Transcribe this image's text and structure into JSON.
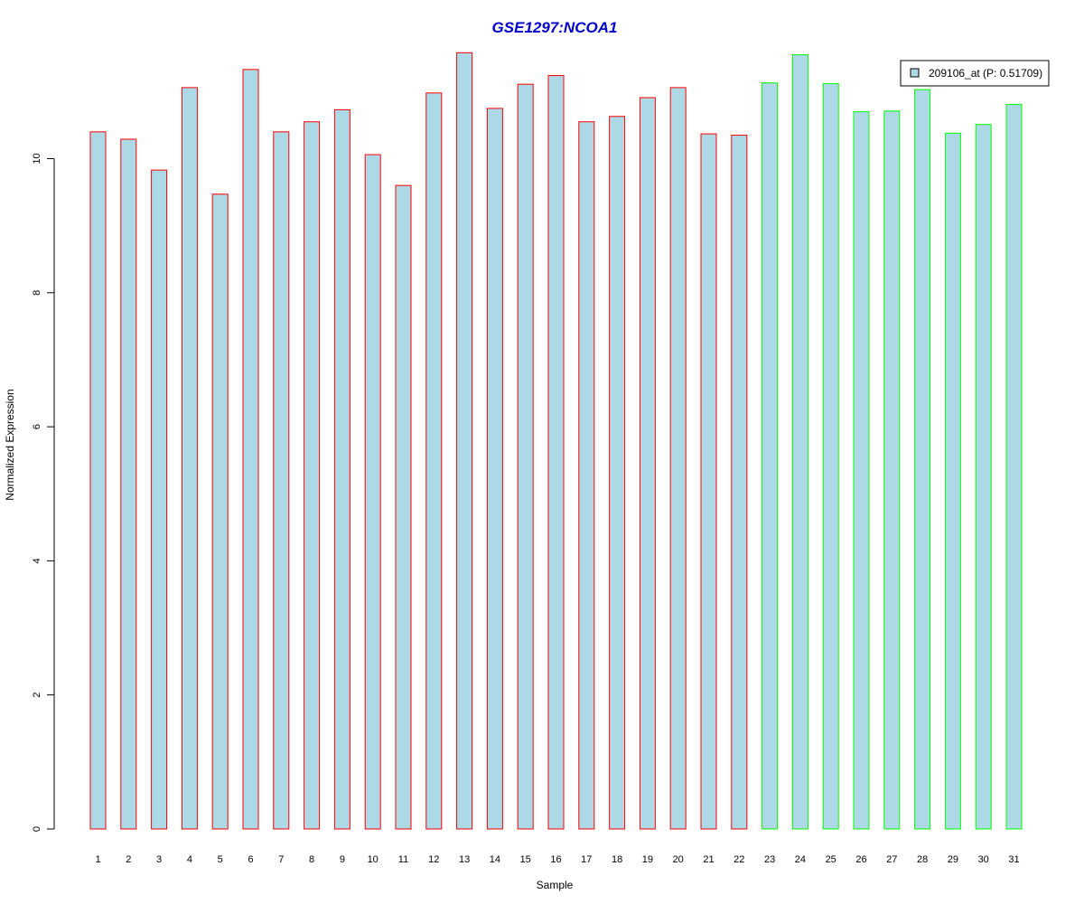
{
  "chart_data": {
    "type": "bar",
    "title": "GSE1297:NCOA1",
    "xlabel": "Sample",
    "ylabel": "Normalized Expression",
    "ylim": [
      0,
      11.6
    ],
    "yticks": [
      0,
      2,
      4,
      6,
      8,
      10
    ],
    "categories": [
      "1",
      "2",
      "3",
      "4",
      "5",
      "6",
      "7",
      "8",
      "9",
      "10",
      "11",
      "12",
      "13",
      "14",
      "15",
      "16",
      "17",
      "18",
      "19",
      "20",
      "21",
      "22",
      "23",
      "24",
      "25",
      "26",
      "27",
      "28",
      "29",
      "30",
      "31"
    ],
    "values": [
      10.4,
      10.29,
      9.83,
      11.06,
      9.47,
      11.33,
      10.4,
      10.55,
      10.73,
      10.06,
      9.6,
      10.98,
      11.58,
      10.75,
      11.11,
      11.24,
      10.55,
      10.63,
      10.91,
      11.06,
      10.37,
      10.35,
      11.13,
      11.55,
      11.12,
      10.7,
      10.71,
      11.03,
      10.38,
      10.51,
      10.81
    ],
    "fill_color": "#add8e6",
    "group_colors": [
      "#ff0000",
      "#00ff00"
    ],
    "groups": [
      0,
      0,
      0,
      0,
      0,
      0,
      0,
      0,
      0,
      0,
      0,
      0,
      0,
      0,
      0,
      0,
      0,
      0,
      0,
      0,
      0,
      0,
      1,
      1,
      1,
      1,
      1,
      1,
      1,
      1,
      1
    ],
    "title_color": "#0000cd",
    "legend": {
      "label": "209106_at (P: 0.51709)",
      "placement": "top-right"
    },
    "grid": false
  }
}
